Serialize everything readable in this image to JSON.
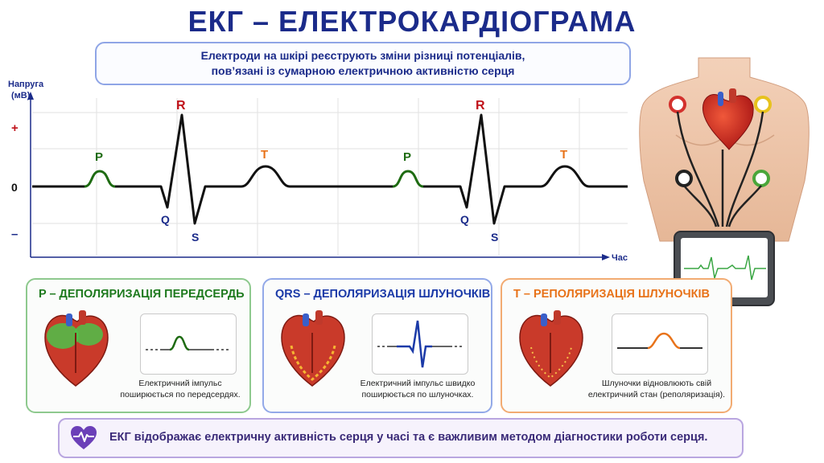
{
  "title": "ЕКГ – ЕЛЕКТРОКАРДІОГРАМА",
  "subtitle": {
    "line1": "Електроди на шкірі реєструють зміни різниці потенціалів,",
    "line2": "пов’язані із сумарною електричною активністю серця"
  },
  "ecg_chart": {
    "y_axis_label_line1": "Напруга",
    "y_axis_label_line2": "(мВ)",
    "y_plus": "+",
    "y_zero": "0",
    "y_minus": "–",
    "x_axis_label": "Час",
    "wave_labels": {
      "p": "P",
      "q": "Q",
      "r": "R",
      "s": "S",
      "t": "T"
    },
    "colors": {
      "p": "#1e6b12",
      "r": "#c0121a",
      "t": "#e8731a",
      "qs": "#1b2b8a"
    }
  },
  "panels": {
    "p": {
      "title": "P – ДЕПОЛЯРИЗАЦІЯ ПЕРЕДСЕРДЬ",
      "desc_line1": "Електричний імпульс",
      "desc_line2": "поширюється по передсердях.",
      "color": "#1e8a1e"
    },
    "qrs": {
      "title": "QRS – ДЕПОЛЯРИЗАЦІЯ ШЛУНОЧКІВ",
      "desc_line1": "Електричний імпульс швидко",
      "desc_line2": "поширюється по шлуночках.",
      "color": "#1b3aa8"
    },
    "t": {
      "title": "T – РЕПОЛЯРИЗАЦІЯ ШЛУНОЧКІВ",
      "desc_line1": "Шлуночки відновлюють свій",
      "desc_line2": "електричний стан (реполяризація).",
      "color": "#e8731a"
    }
  },
  "footer": {
    "text": "ЕКГ відображає електричну активність серця у часі та є важливим методом діагностики роботи серця.",
    "icon": "heart-pulse-icon"
  }
}
